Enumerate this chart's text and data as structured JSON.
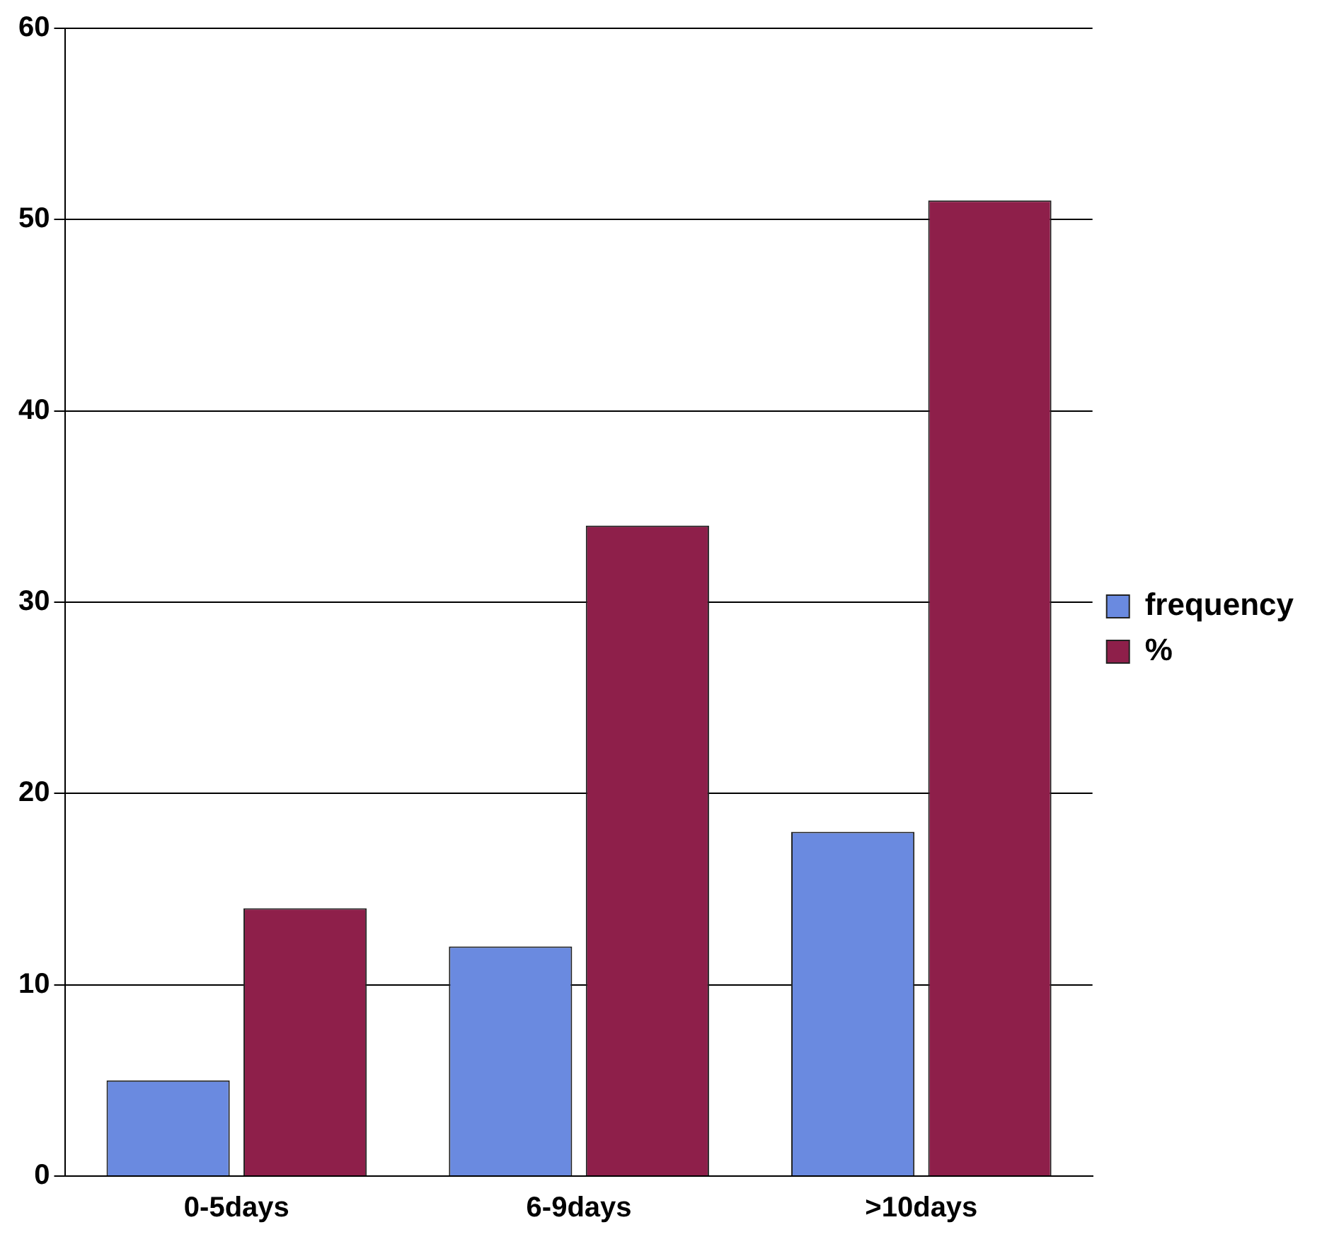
{
  "chart_data": {
    "type": "bar",
    "categories": [
      "0-5days",
      "6-9days",
      ">10days"
    ],
    "series": [
      {
        "name": "frequency",
        "color": "#6a8ae0",
        "values": [
          5,
          12,
          18
        ]
      },
      {
        "name": "%",
        "color": "#8e1f4a",
        "values": [
          14,
          34,
          51
        ]
      }
    ],
    "ylim": [
      0,
      60
    ],
    "yticks": [
      0,
      10,
      20,
      30,
      40,
      50,
      60
    ],
    "grid": "y",
    "legend": "right"
  }
}
